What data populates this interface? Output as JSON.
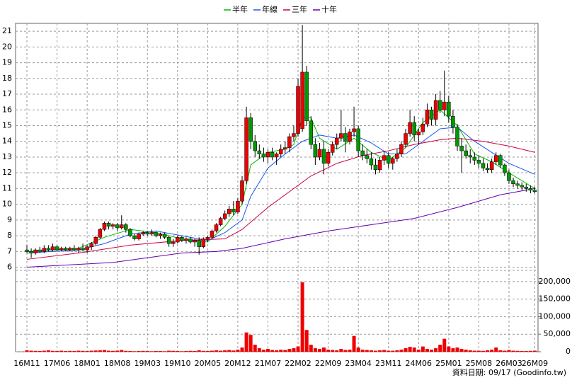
{
  "chart_data": {
    "type": "candlestick",
    "legend": [
      "半年",
      "年線",
      "三年",
      "十年"
    ],
    "footer": "資料日期: 09/17 (Goodinfo.tw)",
    "categories": [
      "16M11",
      null,
      null,
      null,
      null,
      null,
      null,
      "17M06",
      null,
      null,
      null,
      null,
      null,
      null,
      "18M01",
      null,
      null,
      null,
      null,
      null,
      null,
      "18M08",
      null,
      null,
      null,
      null,
      null,
      null,
      "19M03",
      null,
      null,
      null,
      null,
      null,
      null,
      "19M10",
      null,
      null,
      null,
      null,
      null,
      null,
      "20M05",
      null,
      null,
      null,
      null,
      null,
      null,
      "20M12",
      null,
      null,
      null,
      null,
      null,
      null,
      "21M07",
      null,
      null,
      null,
      null,
      null,
      null,
      "22M02",
      null,
      null,
      null,
      null,
      null,
      null,
      "22M09",
      null,
      null,
      null,
      null,
      null,
      null,
      "23M04",
      null,
      null,
      null,
      null,
      null,
      null,
      "23M11",
      null,
      null,
      null,
      null,
      null,
      null,
      "24M06",
      null,
      null,
      null,
      null,
      null,
      null,
      "25M01",
      null,
      null,
      null,
      null,
      null,
      null,
      "25M08",
      null,
      null,
      null,
      null,
      null,
      null,
      "26M03",
      null,
      null,
      null,
      null,
      null,
      "26M09"
    ],
    "ohlc": [
      [
        7.1,
        7.4,
        6.9,
        7.0
      ],
      [
        7.0,
        7.2,
        6.6,
        6.9
      ],
      [
        6.9,
        7.2,
        6.8,
        7.1
      ],
      [
        7.1,
        7.3,
        6.9,
        7.0
      ],
      [
        7.0,
        7.4,
        6.9,
        7.2
      ],
      [
        7.2,
        7.4,
        7.0,
        7.1
      ],
      [
        7.1,
        7.5,
        7.0,
        7.3
      ],
      [
        7.3,
        7.4,
        7.0,
        7.1
      ],
      [
        7.1,
        7.3,
        7.0,
        7.2
      ],
      [
        7.2,
        7.3,
        7.0,
        7.1
      ],
      [
        7.1,
        7.3,
        7.0,
        7.2
      ],
      [
        7.2,
        7.4,
        7.0,
        7.1
      ],
      [
        7.1,
        7.3,
        6.9,
        7.2
      ],
      [
        7.2,
        7.5,
        7.0,
        7.1
      ],
      [
        7.1,
        7.4,
        6.9,
        7.3
      ],
      [
        7.3,
        7.6,
        7.1,
        7.5
      ],
      [
        7.5,
        8.0,
        7.4,
        7.9
      ],
      [
        7.9,
        8.5,
        7.8,
        8.4
      ],
      [
        8.4,
        8.9,
        8.3,
        8.8
      ],
      [
        8.8,
        8.9,
        8.4,
        8.6
      ],
      [
        8.6,
        8.8,
        8.4,
        8.7
      ],
      [
        8.7,
        8.8,
        8.3,
        8.5
      ],
      [
        8.5,
        9.3,
        8.4,
        8.7
      ],
      [
        8.7,
        8.8,
        8.2,
        8.4
      ],
      [
        8.4,
        8.5,
        7.9,
        8.0
      ],
      [
        8.0,
        8.1,
        7.7,
        7.8
      ],
      [
        7.8,
        8.2,
        7.7,
        8.1
      ],
      [
        8.1,
        8.3,
        8.0,
        8.2
      ],
      [
        8.2,
        8.3,
        8.0,
        8.1
      ],
      [
        8.1,
        8.4,
        8.0,
        8.2
      ],
      [
        8.2,
        8.3,
        7.9,
        8.0
      ],
      [
        8.0,
        8.2,
        7.8,
        8.1
      ],
      [
        8.1,
        8.2,
        7.8,
        7.9
      ],
      [
        7.9,
        8.0,
        7.3,
        7.5
      ],
      [
        7.5,
        7.8,
        7.3,
        7.6
      ],
      [
        7.6,
        8.0,
        7.5,
        7.9
      ],
      [
        7.9,
        8.0,
        7.6,
        7.7
      ],
      [
        7.7,
        7.9,
        7.5,
        7.8
      ],
      [
        7.8,
        7.9,
        7.5,
        7.6
      ],
      [
        7.6,
        7.8,
        7.3,
        7.7
      ],
      [
        7.7,
        7.9,
        6.8,
        7.3
      ],
      [
        7.3,
        7.9,
        7.2,
        7.8
      ],
      [
        7.8,
        8.0,
        7.6,
        7.9
      ],
      [
        7.9,
        8.4,
        7.8,
        8.3
      ],
      [
        8.3,
        8.8,
        8.2,
        8.7
      ],
      [
        8.7,
        9.2,
        8.6,
        9.1
      ],
      [
        9.1,
        9.6,
        9.0,
        9.4
      ],
      [
        9.4,
        9.9,
        9.2,
        9.7
      ],
      [
        9.7,
        10.2,
        9.3,
        9.5
      ],
      [
        9.5,
        10.4,
        9.4,
        10.2
      ],
      [
        10.2,
        11.8,
        10.0,
        11.5
      ],
      [
        11.5,
        16.2,
        11.3,
        15.5
      ],
      [
        15.5,
        15.8,
        13.5,
        14.0
      ],
      [
        14.0,
        14.4,
        13.0,
        13.4
      ],
      [
        13.4,
        13.8,
        12.9,
        13.2
      ],
      [
        13.2,
        13.6,
        12.7,
        13.0
      ],
      [
        13.0,
        13.5,
        12.6,
        13.3
      ],
      [
        13.3,
        13.6,
        12.8,
        13.0
      ],
      [
        13.0,
        13.3,
        12.5,
        13.2
      ],
      [
        13.2,
        13.8,
        13.0,
        13.5
      ],
      [
        13.5,
        14.0,
        13.2,
        13.6
      ],
      [
        13.6,
        14.5,
        13.3,
        14.3
      ],
      [
        14.3,
        15.0,
        14.0,
        14.5
      ],
      [
        14.5,
        18.0,
        14.3,
        17.5
      ],
      [
        14.8,
        21.4,
        14.6,
        18.4
      ],
      [
        18.4,
        18.8,
        15.0,
        15.3
      ],
      [
        15.3,
        15.6,
        13.5,
        13.8
      ],
      [
        13.8,
        14.2,
        12.5,
        13.0
      ],
      [
        13.0,
        13.9,
        12.8,
        13.5
      ],
      [
        13.5,
        14.0,
        11.9,
        12.6
      ],
      [
        12.6,
        13.5,
        12.4,
        13.3
      ],
      [
        13.3,
        14.0,
        13.1,
        13.8
      ],
      [
        13.8,
        14.5,
        13.5,
        14.2
      ],
      [
        14.2,
        16.0,
        14.0,
        14.5
      ],
      [
        14.5,
        14.9,
        13.3,
        14.0
      ],
      [
        14.0,
        14.8,
        13.8,
        14.6
      ],
      [
        14.6,
        16.2,
        14.3,
        14.8
      ],
      [
        14.8,
        15.0,
        13.0,
        13.4
      ],
      [
        13.4,
        13.8,
        12.8,
        13.1
      ],
      [
        13.1,
        13.5,
        12.6,
        12.9
      ],
      [
        12.9,
        13.3,
        12.2,
        12.5
      ],
      [
        12.5,
        12.9,
        11.9,
        12.2
      ],
      [
        12.2,
        13.0,
        12.0,
        12.8
      ],
      [
        12.8,
        13.4,
        12.5,
        13.1
      ],
      [
        13.1,
        13.3,
        12.3,
        12.6
      ],
      [
        12.6,
        13.0,
        12.2,
        12.9
      ],
      [
        12.9,
        13.5,
        12.7,
        13.2
      ],
      [
        13.2,
        14.0,
        13.0,
        13.8
      ],
      [
        13.8,
        14.8,
        13.6,
        14.5
      ],
      [
        14.5,
        16.0,
        14.3,
        15.2
      ],
      [
        15.2,
        15.6,
        14.0,
        14.4
      ],
      [
        14.4,
        14.8,
        13.8,
        14.6
      ],
      [
        14.6,
        15.5,
        14.4,
        15.1
      ],
      [
        15.1,
        16.4,
        14.9,
        16.0
      ],
      [
        16.0,
        16.2,
        15.0,
        15.4
      ],
      [
        15.4,
        17.0,
        15.0,
        16.6
      ],
      [
        16.6,
        17.2,
        15.8,
        16.0
      ],
      [
        16.0,
        18.5,
        15.6,
        16.5
      ],
      [
        16.5,
        16.9,
        15.2,
        15.6
      ],
      [
        15.6,
        16.0,
        14.5,
        14.9
      ],
      [
        14.9,
        15.1,
        13.4,
        13.7
      ],
      [
        13.7,
        14.2,
        12.0,
        13.4
      ],
      [
        13.4,
        13.8,
        12.9,
        13.1
      ],
      [
        13.1,
        13.5,
        12.6,
        13.0
      ],
      [
        13.0,
        13.3,
        12.5,
        12.8
      ],
      [
        12.8,
        13.1,
        12.3,
        12.6
      ],
      [
        12.6,
        12.9,
        12.1,
        12.3
      ],
      [
        12.3,
        12.6,
        12.0,
        12.2
      ],
      [
        12.2,
        12.9,
        12.0,
        12.7
      ],
      [
        12.7,
        13.3,
        12.5,
        13.1
      ],
      [
        13.1,
        13.2,
        12.3,
        12.5
      ],
      [
        12.5,
        12.6,
        11.8,
        12.0
      ],
      [
        12.0,
        12.2,
        11.3,
        11.5
      ],
      [
        11.5,
        11.7,
        11.1,
        11.3
      ],
      [
        11.3,
        11.5,
        11.0,
        11.2
      ],
      [
        11.2,
        11.4,
        10.9,
        11.1
      ],
      [
        11.1,
        11.3,
        10.8,
        11.0
      ],
      [
        11.0,
        11.2,
        10.7,
        10.9
      ],
      [
        10.9,
        11.1,
        10.7,
        10.8
      ]
    ],
    "up_color": "#ee0000",
    "down_color": "#009900",
    "volume": [
      4000,
      3000,
      2500,
      2000,
      3000,
      4000,
      2500,
      2000,
      3000,
      2000,
      2500,
      2000,
      3000,
      2500,
      2000,
      3000,
      3500,
      4000,
      5000,
      3000,
      2500,
      3000,
      5000,
      2500,
      2000,
      1500,
      2000,
      2500,
      2000,
      1500,
      2000,
      2000,
      1500,
      3000,
      2500,
      2000,
      1500,
      2000,
      2500,
      2000,
      4000,
      2500,
      2000,
      3000,
      4000,
      3000,
      4000,
      5000,
      3500,
      6000,
      12000,
      55000,
      48000,
      20000,
      10000,
      6000,
      8000,
      5000,
      4000,
      6000,
      5000,
      8000,
      10000,
      15000,
      198000,
      62000,
      20000,
      10000,
      8000,
      12000,
      6000,
      5000,
      4000,
      8000,
      5000,
      6000,
      45000,
      12000,
      6000,
      5000,
      4000,
      3000,
      4000,
      5000,
      3000,
      3000,
      4000,
      6000,
      10000,
      14000,
      12000,
      6000,
      15000,
      8000,
      6000,
      10000,
      20000,
      37000,
      15000,
      10000,
      12000,
      8000,
      6000,
      4000,
      3000,
      3000,
      2500,
      4000,
      6000,
      12000,
      4000,
      3000,
      5000,
      3000,
      2500,
      2000,
      2000,
      2500,
      3000
    ],
    "volume_color": "#ee0000",
    "ylim": [
      5.8,
      21.5
    ],
    "yticks": [
      6,
      7,
      8,
      9,
      10,
      11,
      12,
      13,
      14,
      15,
      16,
      17,
      18,
      19,
      20,
      21
    ],
    "y2lim": [
      0,
      232000
    ],
    "y2ticks": [
      0,
      {
        "value": 50000,
        "label": "50,000"
      },
      {
        "value": 100000,
        "label": "100,000"
      },
      {
        "value": 150000,
        "label": "150,000"
      },
      {
        "value": 200000,
        "label": "200,000"
      }
    ],
    "grid": true,
    "series": [
      {
        "name": "半年",
        "color": "#00bb00",
        "x": [
          0,
          6,
          12,
          18,
          24,
          30,
          36,
          42,
          46,
          50,
          52,
          56,
          60,
          62,
          64,
          66,
          68,
          72,
          76,
          80,
          84,
          88,
          92,
          96,
          100,
          104,
          108,
          112,
          118
        ],
        "values": [
          7.0,
          7.1,
          7.2,
          7.9,
          8.4,
          8.2,
          7.8,
          7.6,
          8.6,
          10,
          12.5,
          13.3,
          13.5,
          13.8,
          15.5,
          15.5,
          14.2,
          13.5,
          14.2,
          13.3,
          12.8,
          13.6,
          15.2,
          16.0,
          15.0,
          13.2,
          12.7,
          12.0,
          11.0
        ]
      },
      {
        "name": "年線",
        "color": "#1a55ee",
        "x": [
          0,
          12,
          18,
          24,
          30,
          36,
          42,
          46,
          50,
          52,
          56,
          60,
          64,
          68,
          72,
          76,
          80,
          84,
          88,
          92,
          96,
          100,
          104,
          108,
          112,
          118
        ],
        "values": [
          6.9,
          7.1,
          7.5,
          8.1,
          8.3,
          8.0,
          7.7,
          8.2,
          9.0,
          10.5,
          12.3,
          13.2,
          14.0,
          14.4,
          14.2,
          14.4,
          13.9,
          13.2,
          13.2,
          14.0,
          14.8,
          14.9,
          14.0,
          13.3,
          12.6,
          11.9
        ]
      },
      {
        "name": "三年",
        "color": "#cc0044",
        "x": [
          0,
          12,
          24,
          36,
          46,
          50,
          56,
          62,
          66,
          72,
          78,
          84,
          90,
          96,
          100,
          106,
          112,
          118
        ],
        "values": [
          6.5,
          6.9,
          7.4,
          7.7,
          7.8,
          8.4,
          9.8,
          11.0,
          11.8,
          12.6,
          13.1,
          13.4,
          13.8,
          14.1,
          14.2,
          14.0,
          13.7,
          13.3
        ]
      },
      {
        "name": "十年",
        "color": "#6600aa",
        "x": [
          0,
          20,
          36,
          44,
          50,
          60,
          70,
          80,
          90,
          100,
          110,
          118
        ],
        "values": [
          6.0,
          6.3,
          6.9,
          7.0,
          7.2,
          7.8,
          8.3,
          8.7,
          9.1,
          9.8,
          10.6,
          11.0
        ]
      }
    ]
  }
}
